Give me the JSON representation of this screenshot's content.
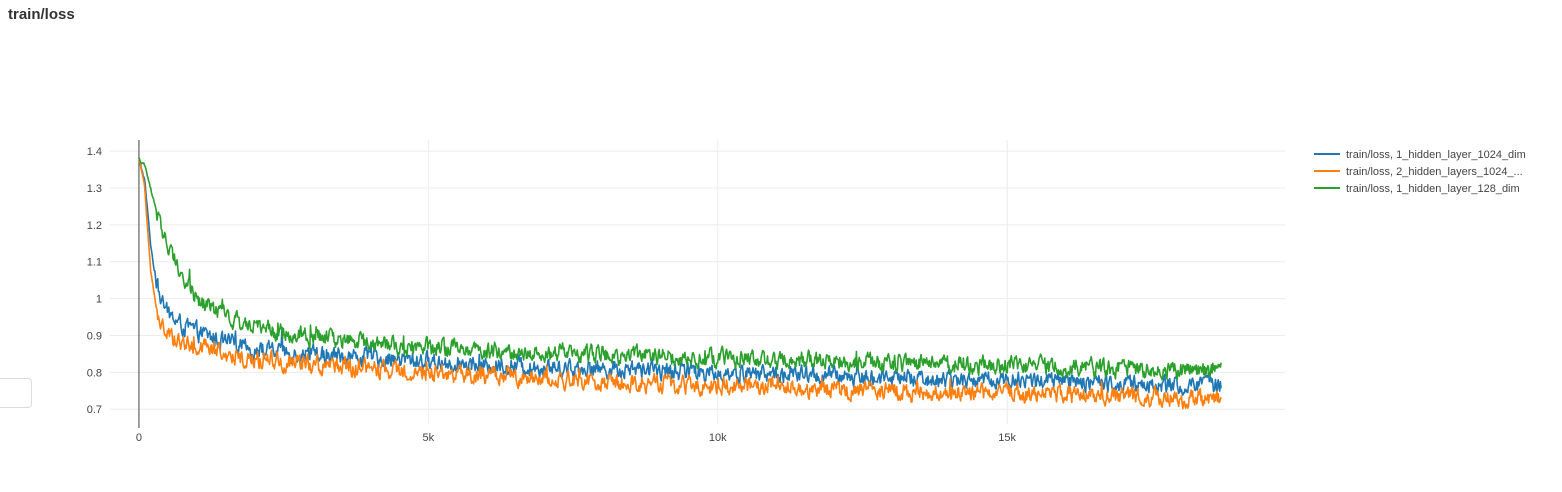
{
  "panel": {
    "title": "train/loss"
  },
  "chart_data": {
    "type": "line",
    "title": "train/loss",
    "xlabel": "",
    "ylabel": "",
    "xlim": [
      -500,
      19800
    ],
    "ylim": [
      0.66,
      1.43
    ],
    "x_ticks": [
      {
        "value": 0,
        "label": "0"
      },
      {
        "value": 5000,
        "label": "5k"
      },
      {
        "value": 10000,
        "label": "10k"
      },
      {
        "value": 15000,
        "label": "15k"
      }
    ],
    "y_ticks": [
      {
        "value": 0.7,
        "label": "0.7"
      },
      {
        "value": 0.8,
        "label": "0.8"
      },
      {
        "value": 0.9,
        "label": "0.9"
      },
      {
        "value": 1.0,
        "label": "1"
      },
      {
        "value": 1.1,
        "label": "1.1"
      },
      {
        "value": 1.2,
        "label": "1.2"
      },
      {
        "value": 1.3,
        "label": "1.3"
      },
      {
        "value": 1.4,
        "label": "1.4"
      }
    ],
    "grid": true,
    "legend_position": "right",
    "series": [
      {
        "name": "train/loss, 1_hidden_layer_1024_dim",
        "color": "#1f77b4",
        "x": [
          0,
          100,
          200,
          300,
          400,
          500,
          700,
          1000,
          1500,
          2000,
          3000,
          4000,
          5000,
          6000,
          7000,
          8000,
          9000,
          10000,
          11000,
          12000,
          13000,
          14000,
          15000,
          16000,
          17000,
          18000,
          18700
        ],
        "y": [
          1.38,
          1.32,
          1.15,
          1.04,
          0.99,
          0.96,
          0.93,
          0.91,
          0.88,
          0.86,
          0.85,
          0.84,
          0.83,
          0.82,
          0.815,
          0.81,
          0.805,
          0.8,
          0.795,
          0.79,
          0.785,
          0.78,
          0.78,
          0.775,
          0.77,
          0.765,
          0.765
        ],
        "noise": 0.025
      },
      {
        "name": "train/loss, 2_hidden_layers_1024_...",
        "color": "#ff7f0e",
        "x": [
          0,
          100,
          200,
          300,
          400,
          500,
          700,
          1000,
          1500,
          2000,
          3000,
          4000,
          5000,
          6000,
          7000,
          8000,
          9000,
          10000,
          11000,
          12000,
          13000,
          14000,
          15000,
          16000,
          17000,
          18000,
          18700
        ],
        "y": [
          1.38,
          1.3,
          1.08,
          0.97,
          0.93,
          0.9,
          0.885,
          0.87,
          0.85,
          0.835,
          0.82,
          0.81,
          0.8,
          0.79,
          0.785,
          0.775,
          0.77,
          0.765,
          0.76,
          0.755,
          0.75,
          0.745,
          0.745,
          0.74,
          0.735,
          0.73,
          0.73
        ],
        "noise": 0.025
      },
      {
        "name": "train/loss, 1_hidden_layer_128_dim",
        "color": "#2ca02c",
        "x": [
          0,
          100,
          200,
          300,
          400,
          500,
          700,
          1000,
          1500,
          2000,
          3000,
          4000,
          5000,
          6000,
          7000,
          8000,
          9000,
          10000,
          11000,
          12000,
          13000,
          14000,
          15000,
          16000,
          17000,
          18000,
          18700
        ],
        "y": [
          1.38,
          1.36,
          1.3,
          1.24,
          1.19,
          1.15,
          1.08,
          1.0,
          0.95,
          0.92,
          0.895,
          0.88,
          0.87,
          0.86,
          0.855,
          0.85,
          0.845,
          0.84,
          0.835,
          0.83,
          0.825,
          0.82,
          0.82,
          0.815,
          0.81,
          0.805,
          0.8
        ],
        "noise": 0.025
      }
    ]
  }
}
